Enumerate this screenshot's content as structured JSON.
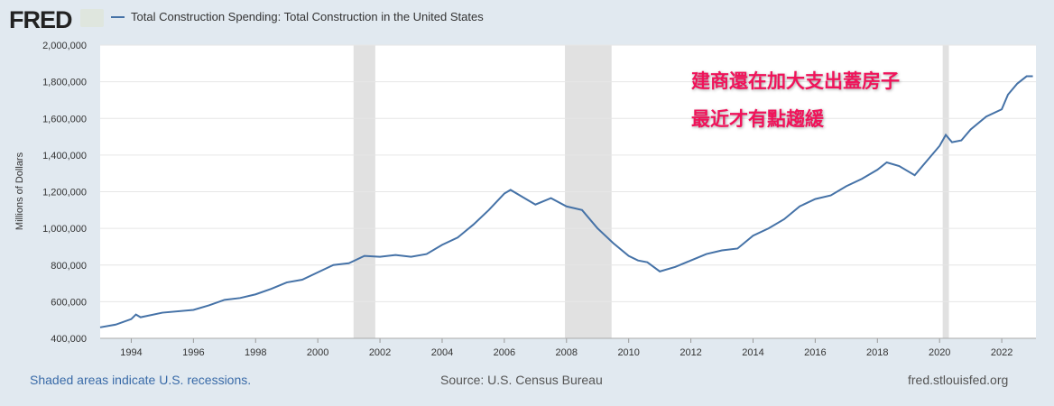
{
  "header": {
    "logo": "FRED",
    "legend": "Total Construction Spending: Total Construction in the United States"
  },
  "colors": {
    "series": "#4572a7",
    "recession": "#e1e1e1",
    "annotation": "#f0135a"
  },
  "annotation": {
    "line1": "建商還在加大支出蓋房子",
    "line2": "最近才有點趨緩"
  },
  "footer": {
    "left": "Shaded areas indicate U.S. recessions.",
    "center": "Source: U.S. Census Bureau",
    "right": "fred.stlouisfed.org"
  },
  "chart_data": {
    "type": "line",
    "title": "Total Construction Spending: Total Construction in the United States",
    "ylabel": "Millions of Dollars",
    "xlabel": "",
    "xlim": [
      1993,
      2023.1
    ],
    "ylim": [
      400000,
      2000000
    ],
    "yticks": [
      400000,
      600000,
      800000,
      1000000,
      1200000,
      1400000,
      1600000,
      1800000,
      2000000
    ],
    "ytick_labels": [
      "400,000",
      "600,000",
      "800,000",
      "1,000,000",
      "1,200,000",
      "1,400,000",
      "1,600,000",
      "1,800,000",
      "2,000,000"
    ],
    "xticks": [
      1994,
      1996,
      1998,
      2000,
      2002,
      2004,
      2006,
      2008,
      2010,
      2012,
      2014,
      2016,
      2018,
      2020,
      2022
    ],
    "recessions": [
      [
        2001.15,
        2001.85
      ],
      [
        2007.95,
        2009.45
      ],
      [
        2020.1,
        2020.3
      ]
    ],
    "series": [
      {
        "name": "Total Construction Spending",
        "x": [
          1993,
          1993.5,
          1994,
          1994.15,
          1994.3,
          1995,
          1996,
          1996.5,
          1997,
          1997.5,
          1998,
          1998.5,
          1999,
          1999.5,
          2000,
          2000.5,
          2001,
          2001.5,
          2002,
          2002.5,
          2003,
          2003.5,
          2004,
          2004.5,
          2005,
          2005.5,
          2006,
          2006.2,
          2006.6,
          2007,
          2007.5,
          2008,
          2008.5,
          2009,
          2009.5,
          2010,
          2010.3,
          2010.6,
          2011,
          2011.5,
          2012,
          2012.5,
          2013,
          2013.5,
          2014,
          2014.5,
          2015,
          2015.5,
          2016,
          2016.5,
          2017,
          2017.5,
          2018,
          2018.3,
          2018.7,
          2019.2,
          2019.5,
          2020,
          2020.2,
          2020.4,
          2020.7,
          2021,
          2021.5,
          2022,
          2022.2,
          2022.5,
          2022.8,
          2023
        ],
        "values": [
          460000,
          475000,
          505000,
          530000,
          515000,
          540000,
          555000,
          580000,
          610000,
          620000,
          640000,
          670000,
          705000,
          720000,
          760000,
          800000,
          810000,
          850000,
          845000,
          855000,
          845000,
          860000,
          910000,
          950000,
          1020000,
          1100000,
          1190000,
          1210000,
          1170000,
          1130000,
          1165000,
          1120000,
          1100000,
          1000000,
          920000,
          850000,
          825000,
          815000,
          765000,
          790000,
          825000,
          860000,
          880000,
          890000,
          960000,
          1000000,
          1050000,
          1120000,
          1160000,
          1180000,
          1230000,
          1270000,
          1320000,
          1360000,
          1340000,
          1290000,
          1350000,
          1450000,
          1510000,
          1470000,
          1480000,
          1540000,
          1610000,
          1650000,
          1730000,
          1790000,
          1830000,
          1830000
        ]
      }
    ]
  }
}
